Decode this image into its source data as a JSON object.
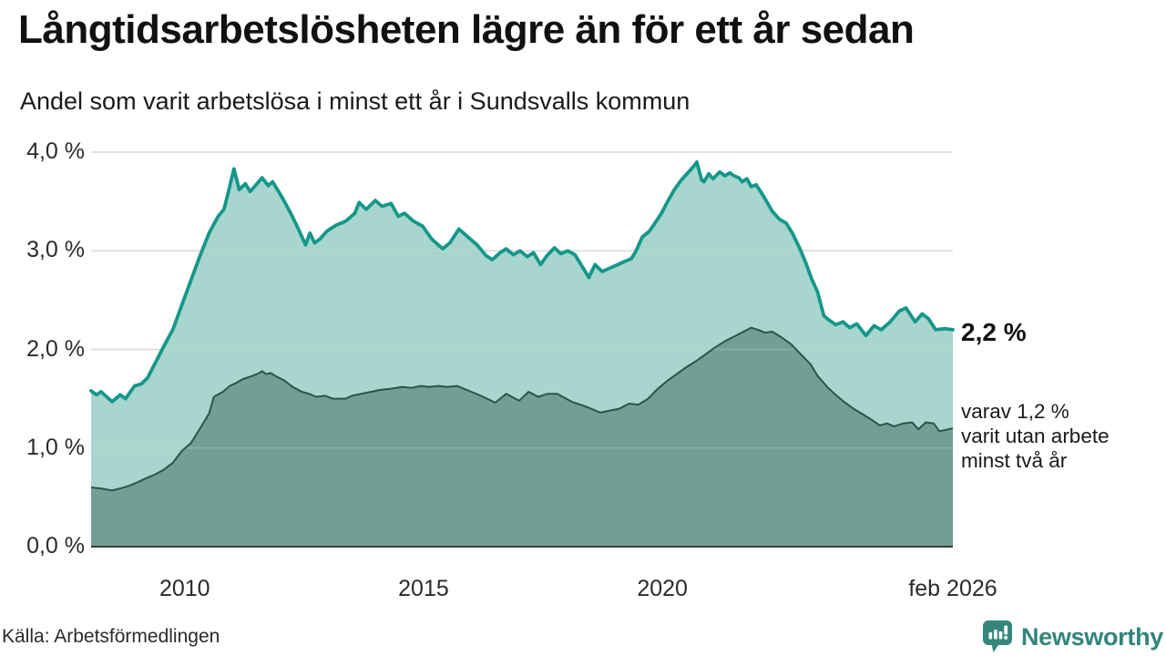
{
  "header": {
    "title": "Långtidsarbetslösheten lägre än för ett år sedan",
    "subtitle": "Andel som varit arbetslösa i minst ett år i Sundsvalls kommun"
  },
  "footer": {
    "source": "Källa: Arbetsförmedlingen",
    "brand": "Newsworthy"
  },
  "colors": {
    "line_1yr": "#14978a",
    "fill_1yr": "#a8d5cd",
    "line_2yr": "#28544c",
    "fill_2yr": "#719f96",
    "grid": "#d8d8d8",
    "axis": "#3a3a3a",
    "brand": "#35867d"
  },
  "chart_data": {
    "type": "area",
    "title": "Långtidsarbetslösheten lägre än för ett år sedan",
    "subtitle": "Andel som varit arbetslösa i minst ett år i Sundsvalls kommun",
    "unit": "%",
    "grid": true,
    "legend_position": "direct-labels-right",
    "x_axis": {
      "range": [
        2008.04,
        2026.08
      ],
      "ticks": [
        {
          "t": 2010,
          "label": "2010"
        },
        {
          "t": 2015,
          "label": "2015"
        },
        {
          "t": 2020,
          "label": "2020"
        },
        {
          "t": 2026.08,
          "label": "feb 2026"
        }
      ]
    },
    "y_axis": {
      "range": [
        0,
        4
      ],
      "ticks": [
        {
          "v": 0,
          "label": "0,0 %"
        },
        {
          "v": 1,
          "label": "1,0 %"
        },
        {
          "v": 2,
          "label": "2,0 %"
        },
        {
          "v": 3,
          "label": "3,0 %"
        },
        {
          "v": 4,
          "label": "4,0 %"
        }
      ]
    },
    "annotations": {
      "total": "2,2 %",
      "sub_line1": "varav 1,2 %",
      "sub_line2": "varit utan arbete",
      "sub_line3": "minst två år",
      "latest_values": {
        "minst_ett_ar": 2.2,
        "minst_tva_ar": 1.2
      }
    },
    "series": [
      {
        "name": "Andel arbetslösa minst ett år",
        "color": "#14978a",
        "fill": "#a8d5cd",
        "line_width": 3.8,
        "points": [
          [
            2008.04,
            1.58
          ],
          [
            2008.15,
            1.54
          ],
          [
            2008.25,
            1.57
          ],
          [
            2008.48,
            1.47
          ],
          [
            2008.65,
            1.54
          ],
          [
            2008.76,
            1.5
          ],
          [
            2008.95,
            1.63
          ],
          [
            2009.09,
            1.65
          ],
          [
            2009.22,
            1.71
          ],
          [
            2009.37,
            1.85
          ],
          [
            2009.56,
            2.03
          ],
          [
            2009.75,
            2.2
          ],
          [
            2009.94,
            2.45
          ],
          [
            2010.13,
            2.7
          ],
          [
            2010.32,
            2.95
          ],
          [
            2010.51,
            3.18
          ],
          [
            2010.7,
            3.35
          ],
          [
            2010.82,
            3.42
          ],
          [
            2010.89,
            3.55
          ],
          [
            2011.03,
            3.83
          ],
          [
            2011.14,
            3.62
          ],
          [
            2011.27,
            3.68
          ],
          [
            2011.37,
            3.6
          ],
          [
            2011.46,
            3.65
          ],
          [
            2011.62,
            3.74
          ],
          [
            2011.75,
            3.66
          ],
          [
            2011.84,
            3.7
          ],
          [
            2012.03,
            3.55
          ],
          [
            2012.22,
            3.38
          ],
          [
            2012.38,
            3.22
          ],
          [
            2012.53,
            3.06
          ],
          [
            2012.62,
            3.18
          ],
          [
            2012.72,
            3.08
          ],
          [
            2012.83,
            3.12
          ],
          [
            2012.98,
            3.2
          ],
          [
            2013.17,
            3.26
          ],
          [
            2013.37,
            3.3
          ],
          [
            2013.56,
            3.38
          ],
          [
            2013.65,
            3.49
          ],
          [
            2013.8,
            3.42
          ],
          [
            2013.99,
            3.51
          ],
          [
            2014.13,
            3.45
          ],
          [
            2014.32,
            3.48
          ],
          [
            2014.47,
            3.35
          ],
          [
            2014.6,
            3.38
          ],
          [
            2014.79,
            3.3
          ],
          [
            2014.98,
            3.25
          ],
          [
            2015.17,
            3.12
          ],
          [
            2015.4,
            3.02
          ],
          [
            2015.55,
            3.08
          ],
          [
            2015.74,
            3.22
          ],
          [
            2015.93,
            3.14
          ],
          [
            2016.12,
            3.06
          ],
          [
            2016.31,
            2.95
          ],
          [
            2016.44,
            2.91
          ],
          [
            2016.6,
            2.98
          ],
          [
            2016.73,
            3.02
          ],
          [
            2016.88,
            2.96
          ],
          [
            2017.02,
            3.0
          ],
          [
            2017.17,
            2.94
          ],
          [
            2017.3,
            2.98
          ],
          [
            2017.45,
            2.86
          ],
          [
            2017.58,
            2.95
          ],
          [
            2017.74,
            3.03
          ],
          [
            2017.87,
            2.97
          ],
          [
            2018.02,
            3.0
          ],
          [
            2018.17,
            2.96
          ],
          [
            2018.31,
            2.85
          ],
          [
            2018.46,
            2.73
          ],
          [
            2018.59,
            2.86
          ],
          [
            2018.74,
            2.79
          ],
          [
            2018.88,
            2.82
          ],
          [
            2019.07,
            2.86
          ],
          [
            2019.2,
            2.89
          ],
          [
            2019.35,
            2.92
          ],
          [
            2019.45,
            3.0
          ],
          [
            2019.58,
            3.14
          ],
          [
            2019.73,
            3.2
          ],
          [
            2019.87,
            3.3
          ],
          [
            2019.98,
            3.38
          ],
          [
            2020.11,
            3.5
          ],
          [
            2020.25,
            3.62
          ],
          [
            2020.4,
            3.72
          ],
          [
            2020.55,
            3.8
          ],
          [
            2020.66,
            3.86
          ],
          [
            2020.72,
            3.9
          ],
          [
            2020.82,
            3.72
          ],
          [
            2020.87,
            3.7
          ],
          [
            2020.97,
            3.78
          ],
          [
            2021.06,
            3.73
          ],
          [
            2021.2,
            3.8
          ],
          [
            2021.31,
            3.76
          ],
          [
            2021.41,
            3.79
          ],
          [
            2021.5,
            3.76
          ],
          [
            2021.6,
            3.74
          ],
          [
            2021.67,
            3.7
          ],
          [
            2021.77,
            3.73
          ],
          [
            2021.86,
            3.65
          ],
          [
            2021.96,
            3.67
          ],
          [
            2022.11,
            3.56
          ],
          [
            2022.3,
            3.4
          ],
          [
            2022.45,
            3.32
          ],
          [
            2022.59,
            3.28
          ],
          [
            2022.72,
            3.18
          ],
          [
            2022.87,
            3.03
          ],
          [
            2023.0,
            2.88
          ],
          [
            2023.12,
            2.72
          ],
          [
            2023.25,
            2.58
          ],
          [
            2023.38,
            2.34
          ],
          [
            2023.48,
            2.3
          ],
          [
            2023.63,
            2.25
          ],
          [
            2023.78,
            2.28
          ],
          [
            2023.92,
            2.22
          ],
          [
            2024.07,
            2.26
          ],
          [
            2024.26,
            2.14
          ],
          [
            2024.43,
            2.24
          ],
          [
            2024.58,
            2.2
          ],
          [
            2024.77,
            2.28
          ],
          [
            2024.96,
            2.39
          ],
          [
            2025.1,
            2.42
          ],
          [
            2025.29,
            2.28
          ],
          [
            2025.44,
            2.36
          ],
          [
            2025.57,
            2.31
          ],
          [
            2025.72,
            2.2
          ],
          [
            2025.91,
            2.21
          ],
          [
            2026.08,
            2.2
          ]
        ]
      },
      {
        "name": "Andel som varit utan arbete minst två år",
        "color": "#28544c",
        "fill": "#719f96",
        "line_width": 2,
        "points": [
          [
            2008.04,
            0.6
          ],
          [
            2008.25,
            0.59
          ],
          [
            2008.48,
            0.57
          ],
          [
            2008.65,
            0.59
          ],
          [
            2008.85,
            0.62
          ],
          [
            2009.0,
            0.65
          ],
          [
            2009.22,
            0.7
          ],
          [
            2009.37,
            0.73
          ],
          [
            2009.56,
            0.78
          ],
          [
            2009.75,
            0.85
          ],
          [
            2009.94,
            0.97
          ],
          [
            2010.13,
            1.05
          ],
          [
            2010.36,
            1.23
          ],
          [
            2010.51,
            1.35
          ],
          [
            2010.61,
            1.52
          ],
          [
            2010.8,
            1.57
          ],
          [
            2010.94,
            1.63
          ],
          [
            2011.08,
            1.66
          ],
          [
            2011.22,
            1.7
          ],
          [
            2011.41,
            1.73
          ],
          [
            2011.56,
            1.76
          ],
          [
            2011.62,
            1.78
          ],
          [
            2011.7,
            1.75
          ],
          [
            2011.8,
            1.76
          ],
          [
            2011.94,
            1.72
          ],
          [
            2012.07,
            1.69
          ],
          [
            2012.26,
            1.62
          ],
          [
            2012.45,
            1.57
          ],
          [
            2012.6,
            1.55
          ],
          [
            2012.75,
            1.52
          ],
          [
            2012.94,
            1.53
          ],
          [
            2013.1,
            1.5
          ],
          [
            2013.37,
            1.5
          ],
          [
            2013.5,
            1.53
          ],
          [
            2013.7,
            1.55
          ],
          [
            2013.9,
            1.57
          ],
          [
            2014.1,
            1.59
          ],
          [
            2014.3,
            1.6
          ],
          [
            2014.56,
            1.62
          ],
          [
            2014.75,
            1.61
          ],
          [
            2014.94,
            1.63
          ],
          [
            2015.12,
            1.62
          ],
          [
            2015.3,
            1.63
          ],
          [
            2015.5,
            1.62
          ],
          [
            2015.7,
            1.63
          ],
          [
            2015.85,
            1.6
          ],
          [
            2016.0,
            1.57
          ],
          [
            2016.25,
            1.52
          ],
          [
            2016.5,
            1.46
          ],
          [
            2016.73,
            1.55
          ],
          [
            2017.0,
            1.48
          ],
          [
            2017.2,
            1.57
          ],
          [
            2017.4,
            1.52
          ],
          [
            2017.6,
            1.55
          ],
          [
            2017.8,
            1.55
          ],
          [
            2018.1,
            1.47
          ],
          [
            2018.4,
            1.42
          ],
          [
            2018.7,
            1.36
          ],
          [
            2018.9,
            1.38
          ],
          [
            2019.1,
            1.4
          ],
          [
            2019.3,
            1.45
          ],
          [
            2019.5,
            1.44
          ],
          [
            2019.7,
            1.5
          ],
          [
            2019.9,
            1.6
          ],
          [
            2020.1,
            1.68
          ],
          [
            2020.3,
            1.75
          ],
          [
            2020.5,
            1.82
          ],
          [
            2020.7,
            1.88
          ],
          [
            2020.9,
            1.95
          ],
          [
            2021.1,
            2.02
          ],
          [
            2021.3,
            2.08
          ],
          [
            2021.5,
            2.13
          ],
          [
            2021.7,
            2.18
          ],
          [
            2021.86,
            2.22
          ],
          [
            2022.0,
            2.2
          ],
          [
            2022.15,
            2.17
          ],
          [
            2022.3,
            2.18
          ],
          [
            2022.5,
            2.12
          ],
          [
            2022.7,
            2.05
          ],
          [
            2022.9,
            1.95
          ],
          [
            2023.1,
            1.85
          ],
          [
            2023.25,
            1.73
          ],
          [
            2023.45,
            1.62
          ],
          [
            2023.6,
            1.55
          ],
          [
            2023.8,
            1.47
          ],
          [
            2024.0,
            1.4
          ],
          [
            2024.2,
            1.34
          ],
          [
            2024.4,
            1.28
          ],
          [
            2024.55,
            1.23
          ],
          [
            2024.7,
            1.25
          ],
          [
            2024.85,
            1.22
          ],
          [
            2025.04,
            1.25
          ],
          [
            2025.23,
            1.26
          ],
          [
            2025.36,
            1.19
          ],
          [
            2025.51,
            1.26
          ],
          [
            2025.68,
            1.25
          ],
          [
            2025.8,
            1.17
          ],
          [
            2026.08,
            1.2
          ]
        ]
      }
    ]
  }
}
